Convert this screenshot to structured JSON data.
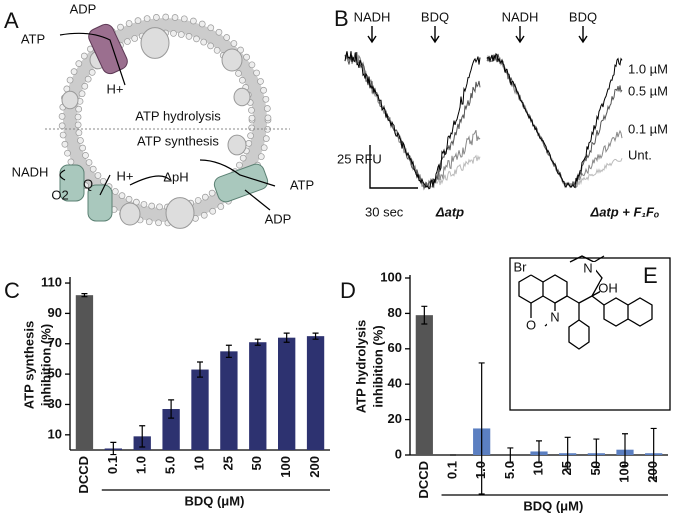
{
  "panel_labels": [
    "A",
    "B",
    "C",
    "D",
    "E"
  ],
  "panel_a": {
    "adp_top": "ADP",
    "atp_top": "ATP",
    "h_top": "H+",
    "hydrolysis": "ATP hydrolysis",
    "synthesis": "ATP synthesis",
    "nadh": "NADH",
    "q": "Q",
    "o2": "O2",
    "h_bottom": "H+",
    "dph": "ΔpH",
    "atp_right": "ATP",
    "adp_right": "ADP"
  },
  "panel_b": {
    "markers": [
      "NADH",
      "BDQ",
      "NADH",
      "BDQ"
    ],
    "legend": [
      "1.0 µM",
      "0.5 µM",
      "0.1 µM",
      "Unt."
    ],
    "scale_y": "25 RFU",
    "scale_x": "30 sec",
    "left_title": "Δatp",
    "right_title": "Δatp + F₁Fₒ"
  },
  "chart_data": [
    {
      "type": "bar",
      "ylabel": [
        "ATP synthesis",
        "inhibition (%)"
      ],
      "xlabel": "BDQ (μM)",
      "categories": [
        "DCCD",
        "0.1",
        "1.0",
        "5.0",
        "10",
        "25",
        "50",
        "100",
        "200"
      ],
      "values": [
        102,
        1,
        9,
        27,
        53,
        65,
        71,
        74,
        75
      ],
      "errors": [
        1,
        4,
        7,
        6,
        5,
        4,
        2,
        3,
        2
      ],
      "colors": [
        "#555555",
        "#2d3270",
        "#2d3270",
        "#2d3270",
        "#2d3270",
        "#2d3270",
        "#2d3270",
        "#2d3270",
        "#2d3270"
      ],
      "ylim": [
        0,
        112
      ],
      "yticks": [
        10,
        30,
        50,
        70,
        90,
        110
      ]
    },
    {
      "type": "bar",
      "ylabel": [
        "ATP hydrolysis",
        "inhibition (%)"
      ],
      "xlabel": "BDQ (μM)",
      "categories": [
        "DCCD",
        "0.1",
        "1.0",
        "5.0",
        "10",
        "25",
        "50",
        "100",
        "200"
      ],
      "values": [
        79,
        0,
        15,
        0,
        2,
        1,
        1,
        3,
        1
      ],
      "errors": [
        5,
        0,
        37,
        4,
        6,
        9,
        8,
        9,
        14
      ],
      "colors": [
        "#555555",
        "#5b7fc1",
        "#5b7fc1",
        "#5b7fc1",
        "#5b7fc1",
        "#5b7fc1",
        "#5b7fc1",
        "#5b7fc1",
        "#5b7fc1"
      ],
      "ylim": [
        0,
        100
      ],
      "yticks": [
        0,
        20,
        40,
        60,
        80,
        100
      ]
    }
  ],
  "panel_e": {
    "atoms": [
      "Br",
      "N",
      "N",
      "OH",
      "O"
    ]
  }
}
